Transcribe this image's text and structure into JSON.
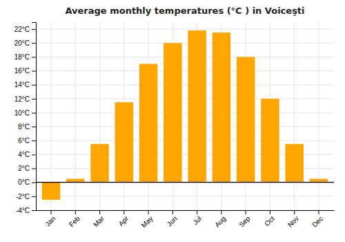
{
  "chart_data": {
    "type": "bar",
    "title": "Average monthly temperatures (°C ) in Voiceşti",
    "categories": [
      "Jan",
      "Feb",
      "Mar",
      "Apr",
      "May",
      "Jun",
      "Jul",
      "Aug",
      "Sep",
      "Oct",
      "Nov",
      "Dec"
    ],
    "values": [
      -2.5,
      0.5,
      5.5,
      11.5,
      17.0,
      20.0,
      21.8,
      21.5,
      18.0,
      12.0,
      5.5,
      0.5
    ],
    "color": "#FFA500",
    "ylim": [
      -4,
      23
    ],
    "yticks": [
      {
        "value": -4,
        "label": "-4°C"
      },
      {
        "value": -2,
        "label": "-2°C"
      },
      {
        "value": 0,
        "label": "0°C"
      },
      {
        "value": 2,
        "label": "2°C"
      },
      {
        "value": 4,
        "label": "4°C"
      },
      {
        "value": 6,
        "label": "6°C"
      },
      {
        "value": 8,
        "label": "8°C"
      },
      {
        "value": 10,
        "label": "10°C"
      },
      {
        "value": 12,
        "label": "12°C"
      },
      {
        "value": 14,
        "label": "14°C"
      },
      {
        "value": 16,
        "label": "16°C"
      },
      {
        "value": 18,
        "label": "18°C"
      },
      {
        "value": 20,
        "label": "20°C"
      },
      {
        "value": 22,
        "label": "22°C"
      }
    ],
    "grid": true
  }
}
